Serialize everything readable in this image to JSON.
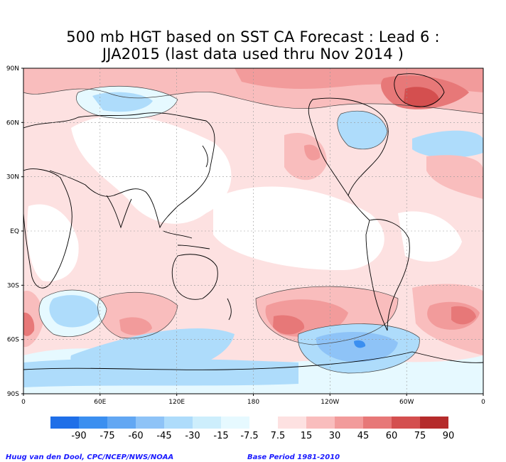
{
  "title": {
    "line1": "500 mb HGT based on SST CA Forecast : Lead 6 :",
    "line2": "JJA2015 (last data used thru Nov 2014 )"
  },
  "map": {
    "lat_ticks": [
      "90N",
      "60N",
      "30N",
      "EQ",
      "30S",
      "60S",
      "90S"
    ],
    "lon_ticks": [
      "0",
      "60E",
      "120E",
      "180",
      "120W",
      "60W",
      "0"
    ],
    "frame_color": "#000000",
    "grid_lines": "dashed"
  },
  "colorbar": {
    "labels": [
      "-90",
      "-75",
      "-60",
      "-45",
      "-30",
      "-15",
      "-7.5",
      "7.5",
      "15",
      "30",
      "45",
      "60",
      "75",
      "90"
    ],
    "colors": [
      "#1f6fe8",
      "#3b8ff0",
      "#62a7f3",
      "#8ec3f7",
      "#aedcfb",
      "#cdeefc",
      "#e6f9ff",
      "#ffffff",
      "#fde1e1",
      "#f9bdbd",
      "#f29b9b",
      "#e77878",
      "#d44f4f",
      "#b52b2b"
    ]
  },
  "credits": {
    "left": "Huug van den Dool, CPC/NCEP/NWS/NOAA",
    "right": "Base Period 1981-2010"
  },
  "anomaly_fill": {
    "warm1": "#fde1e1",
    "warm2": "#f9bdbd",
    "warm3": "#f29b9b",
    "warm4": "#e77878",
    "warm5": "#d44f4f",
    "cool1": "#e6f9ff",
    "cool2": "#aedcfb",
    "cool3": "#8ec3f7",
    "cool4": "#3b8ff0",
    "coast": "#000000"
  }
}
